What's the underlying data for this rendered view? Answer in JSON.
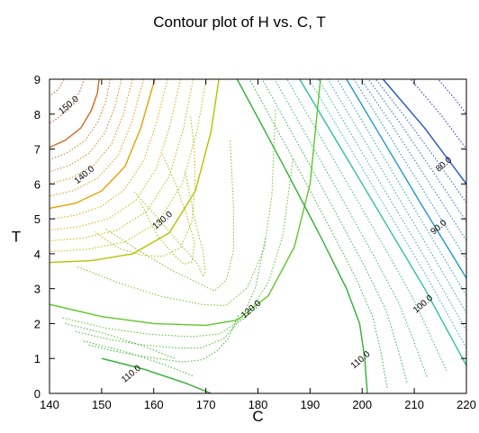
{
  "chart_data": {
    "type": "contour",
    "title": "Contour plot of H vs. C, T",
    "xlabel": "C",
    "ylabel": "T",
    "xlim": [
      140,
      220
    ],
    "ylim": [
      0,
      9
    ],
    "x_ticks": [
      "140",
      "150",
      "160",
      "170",
      "180",
      "190",
      "200",
      "210",
      "220"
    ],
    "y_ticks": [
      "0",
      "1",
      "2",
      "3",
      "4",
      "5",
      "6",
      "7",
      "8",
      "9"
    ],
    "grid": false,
    "labeled_contours": [
      {
        "level": 150.0,
        "label": "150.0",
        "color": "#d2691e",
        "points": [
          [
            149.5,
            9.0
          ],
          [
            149.2,
            8.6
          ],
          [
            148.0,
            8.1
          ],
          [
            146.0,
            7.6
          ],
          [
            143.0,
            7.25
          ],
          [
            140.0,
            7.05
          ]
        ],
        "label_at": [
          144.0,
          8.2
        ]
      },
      {
        "level": 140.0,
        "label": "140.0",
        "color": "#e8a000",
        "points": [
          [
            160.2,
            9.0
          ],
          [
            157.5,
            7.6
          ],
          [
            154.5,
            6.5
          ],
          [
            150.0,
            5.8
          ],
          [
            145.0,
            5.45
          ],
          [
            140.0,
            5.3
          ]
        ],
        "label_at": [
          147.0,
          6.2
        ]
      },
      {
        "level": 130.0,
        "label": "130.0",
        "color": "#b8c000",
        "points": [
          [
            172.5,
            9.0
          ],
          [
            171.0,
            7.5
          ],
          [
            168.0,
            5.8
          ],
          [
            163.0,
            4.6
          ],
          [
            156.0,
            4.0
          ],
          [
            148.0,
            3.8
          ],
          [
            140.0,
            3.75
          ]
        ],
        "label_at": [
          162.0,
          4.9
        ]
      },
      {
        "level": 120.0,
        "label": "120.0",
        "color": "#5ec828",
        "points": [
          [
            140.0,
            2.55
          ],
          [
            150.0,
            2.2
          ],
          [
            160.0,
            2.0
          ],
          [
            170.0,
            1.95
          ],
          [
            176.0,
            2.1
          ],
          [
            182.0,
            2.8
          ],
          [
            187.0,
            4.2
          ],
          [
            190.0,
            6.0
          ],
          [
            192.0,
            9.0
          ]
        ],
        "label_at": [
          179.0,
          2.35
        ]
      },
      {
        "level": 110.0,
        "label": "110.0",
        "color": "#30b030",
        "points": [
          [
            150.0,
            1.0
          ],
          [
            158.0,
            0.7
          ],
          [
            166.0,
            0.3
          ],
          [
            171.0,
            0.0
          ]
        ],
        "label_at": [
          156.0,
          0.5
        ]
      },
      {
        "level": 110.0,
        "label": "110.0",
        "color": "#30b030",
        "points": [
          [
            201.0,
            0.0
          ],
          [
            200.5,
            1.0
          ],
          [
            199.5,
            2.0
          ],
          [
            197.0,
            3.0
          ],
          [
            192.0,
            4.5
          ],
          [
            185.0,
            6.5
          ],
          [
            176.0,
            9.0
          ]
        ],
        "label_at": [
          200.0,
          0.9
        ]
      },
      {
        "level": 100.0,
        "label": "100.0",
        "color": "#2cc0a0",
        "points": [
          [
            220.0,
            0.8
          ],
          [
            212.0,
            3.0
          ],
          [
            200.0,
            6.0
          ],
          [
            188.0,
            9.0
          ]
        ],
        "label_at": [
          212.0,
          2.5
        ]
      },
      {
        "level": 90.0,
        "label": "90.0",
        "color": "#1a9ad0",
        "points": [
          [
            220.0,
            3.3
          ],
          [
            211.0,
            5.5
          ],
          [
            203.0,
            7.5
          ],
          [
            197.0,
            9.0
          ]
        ],
        "label_at": [
          215.0,
          4.7
        ]
      },
      {
        "level": 80.0,
        "label": "80.0",
        "color": "#2050d0",
        "points": [
          [
            220.0,
            6.0
          ],
          [
            212.0,
            7.6
          ],
          [
            204.0,
            9.0
          ]
        ],
        "label_at": [
          216.0,
          6.5
        ]
      }
    ]
  }
}
